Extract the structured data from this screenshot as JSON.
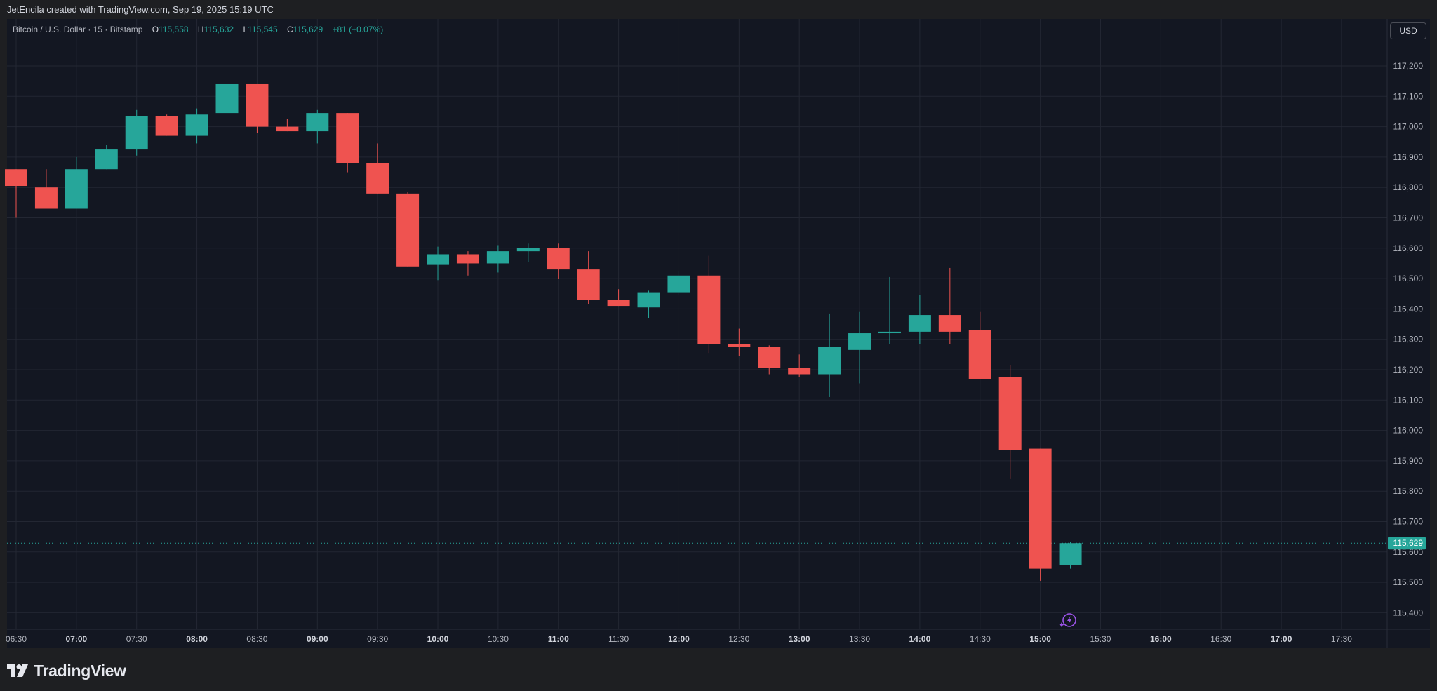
{
  "header": {
    "attribution": "JetEncila created with TradingView.com, Sep 19, 2025 15:19 UTC"
  },
  "legend": {
    "symbol": "Bitcoin / U.S. Dollar · 15 · Bitstamp",
    "open_label": "O",
    "open_value": "115,558",
    "high_label": "H",
    "high_value": "115,632",
    "low_label": "L",
    "low_value": "115,545",
    "close_label": "C",
    "close_value": "115,629",
    "change": "+81 (+0.07%)"
  },
  "toolbar": {
    "currency": "USD"
  },
  "footer": {
    "brand": "TradingView",
    "logo_icon": "tradingview-logo-icon"
  },
  "colors": {
    "background": "#131722",
    "up": "#26a69a",
    "down": "#ef5350",
    "grid": "#232733",
    "axis_text": "#b2b5be",
    "last_price": "#26a69a"
  },
  "chart_data": {
    "type": "candlestick",
    "title": "Bitcoin / U.S. Dollar · 15 · Bitstamp",
    "interval_minutes": 15,
    "y_ticks": [
      115400,
      115500,
      115600,
      115700,
      115800,
      115900,
      116000,
      116100,
      116200,
      116300,
      116400,
      116500,
      116600,
      116700,
      116800,
      116900,
      117000,
      117100,
      117200
    ],
    "y_tick_labels": [
      "115,400",
      "115,500",
      "115,600",
      "115,700",
      "115,800",
      "115,900",
      "116,000",
      "116,100",
      "116,200",
      "116,300",
      "116,400",
      "116,500",
      "116,600",
      "116,700",
      "116,800",
      "116,900",
      "117,000",
      "117,100",
      "117,200"
    ],
    "x_ticks": [
      "06:30",
      "07:00",
      "07:30",
      "08:00",
      "08:30",
      "09:00",
      "09:30",
      "10:00",
      "10:30",
      "11:00",
      "11:30",
      "12:00",
      "12:30",
      "13:00",
      "13:30",
      "14:00",
      "14:30",
      "15:00",
      "15:30",
      "16:00",
      "16:30",
      "17:00",
      "17:30"
    ],
    "last_price": 115629,
    "last_price_label": "115,629",
    "grid": true,
    "candles": [
      {
        "time": "06:30",
        "open": 116860,
        "high": 116860,
        "low": 116700,
        "close": 116805
      },
      {
        "time": "06:45",
        "open": 116800,
        "high": 116860,
        "low": 116730,
        "close": 116730
      },
      {
        "time": "07:00",
        "open": 116730,
        "high": 116900,
        "low": 116730,
        "close": 116860
      },
      {
        "time": "07:15",
        "open": 116860,
        "high": 116940,
        "low": 116860,
        "close": 116925
      },
      {
        "time": "07:30",
        "open": 116925,
        "high": 117055,
        "low": 116905,
        "close": 117035
      },
      {
        "time": "07:45",
        "open": 117035,
        "high": 117040,
        "low": 116970,
        "close": 116970
      },
      {
        "time": "08:00",
        "open": 116970,
        "high": 117060,
        "low": 116945,
        "close": 117040
      },
      {
        "time": "08:15",
        "open": 117045,
        "high": 117155,
        "low": 117045,
        "close": 117140
      },
      {
        "time": "08:30",
        "open": 117140,
        "high": 117140,
        "low": 116980,
        "close": 117000
      },
      {
        "time": "08:45",
        "open": 117000,
        "high": 117025,
        "low": 116985,
        "close": 116985
      },
      {
        "time": "09:00",
        "open": 116985,
        "high": 117055,
        "low": 116945,
        "close": 117045
      },
      {
        "time": "09:15",
        "open": 117045,
        "high": 117045,
        "low": 116850,
        "close": 116880
      },
      {
        "time": "09:30",
        "open": 116880,
        "high": 116945,
        "low": 116780,
        "close": 116780
      },
      {
        "time": "09:45",
        "open": 116780,
        "high": 116785,
        "low": 116540,
        "close": 116540
      },
      {
        "time": "10:00",
        "open": 116545,
        "high": 116605,
        "low": 116495,
        "close": 116580
      },
      {
        "time": "10:15",
        "open": 116580,
        "high": 116590,
        "low": 116510,
        "close": 116550
      },
      {
        "time": "10:30",
        "open": 116550,
        "high": 116610,
        "low": 116520,
        "close": 116590
      },
      {
        "time": "10:45",
        "open": 116590,
        "high": 116615,
        "low": 116555,
        "close": 116600
      },
      {
        "time": "11:00",
        "open": 116600,
        "high": 116615,
        "low": 116500,
        "close": 116530
      },
      {
        "time": "11:15",
        "open": 116530,
        "high": 116590,
        "low": 116415,
        "close": 116430
      },
      {
        "time": "11:30",
        "open": 116430,
        "high": 116465,
        "low": 116410,
        "close": 116410
      },
      {
        "time": "11:45",
        "open": 116405,
        "high": 116460,
        "low": 116370,
        "close": 116455
      },
      {
        "time": "12:00",
        "open": 116455,
        "high": 116525,
        "low": 116445,
        "close": 116510
      },
      {
        "time": "12:15",
        "open": 116510,
        "high": 116575,
        "low": 116255,
        "close": 116285
      },
      {
        "time": "12:30",
        "open": 116285,
        "high": 116335,
        "low": 116245,
        "close": 116275
      },
      {
        "time": "12:45",
        "open": 116275,
        "high": 116280,
        "low": 116185,
        "close": 116205
      },
      {
        "time": "13:00",
        "open": 116205,
        "high": 116250,
        "low": 116175,
        "close": 116185
      },
      {
        "time": "13:15",
        "open": 116185,
        "high": 116385,
        "low": 116110,
        "close": 116275
      },
      {
        "time": "13:30",
        "open": 116265,
        "high": 116390,
        "low": 116155,
        "close": 116320
      },
      {
        "time": "13:45",
        "open": 116320,
        "high": 116505,
        "low": 116285,
        "close": 116325
      },
      {
        "time": "14:00",
        "open": 116325,
        "high": 116445,
        "low": 116285,
        "close": 116380
      },
      {
        "time": "14:15",
        "open": 116380,
        "high": 116535,
        "low": 116285,
        "close": 116325
      },
      {
        "time": "14:30",
        "open": 116330,
        "high": 116390,
        "low": 116170,
        "close": 116170
      },
      {
        "time": "14:45",
        "open": 116175,
        "high": 116215,
        "low": 115840,
        "close": 115935
      },
      {
        "time": "15:00",
        "open": 115940,
        "high": 115940,
        "low": 115505,
        "close": 115545
      },
      {
        "time": "15:15",
        "open": 115558,
        "high": 115632,
        "low": 115545,
        "close": 115629
      }
    ]
  }
}
